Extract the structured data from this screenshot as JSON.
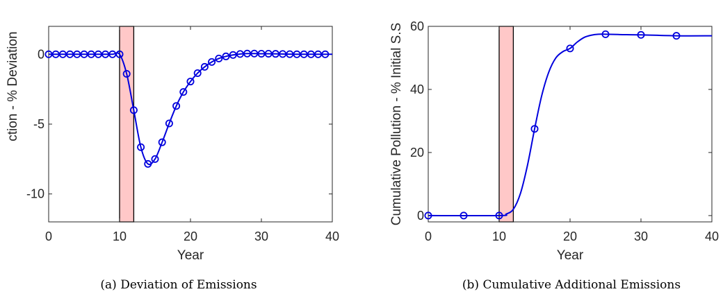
{
  "chart_data": [
    {
      "type": "line",
      "caption": "(a)  Deviation of Emissions",
      "xlabel": "Year",
      "ylabel": "Green Production - % Deviation",
      "xlim": [
        0,
        40
      ],
      "ylim": [
        -12,
        2
      ],
      "xticks": [
        0,
        10,
        20,
        30,
        40
      ],
      "yticks": [
        0,
        -5,
        -10
      ],
      "xtick_labels": [
        "0",
        "10",
        "20",
        "30",
        "40"
      ],
      "ytick_labels": [
        "0",
        "-5",
        "-10"
      ],
      "grid": false,
      "shaded_region": {
        "x_start": 10,
        "x_end": 12,
        "color": "#ffc8c8"
      },
      "series": [
        {
          "color": "#0000dd",
          "marker": "circle",
          "x": [
            0,
            1,
            2,
            3,
            4,
            5,
            6,
            7,
            8,
            9,
            10,
            11,
            12,
            13,
            14,
            15,
            16,
            17,
            18,
            19,
            20,
            21,
            22,
            23,
            24,
            25,
            26,
            27,
            28,
            29,
            30,
            31,
            32,
            33,
            34,
            35,
            36,
            37,
            38,
            39,
            40
          ],
          "y": [
            0,
            0,
            0,
            0,
            0,
            0,
            0,
            0,
            0,
            0,
            0,
            -1.4,
            -4.0,
            -6.65,
            -7.85,
            -7.5,
            -6.3,
            -4.95,
            -3.7,
            -2.7,
            -1.95,
            -1.35,
            -0.9,
            -0.55,
            -0.3,
            -0.15,
            -0.05,
            0.02,
            0.05,
            0.05,
            0.04,
            0.04,
            0.03,
            0.02,
            0.01,
            0,
            0,
            0,
            0,
            0,
            0
          ],
          "marker_x": [
            0,
            1,
            2,
            3,
            4,
            5,
            6,
            7,
            8,
            9,
            10,
            11,
            12,
            13,
            14,
            15,
            16,
            17,
            18,
            19,
            20,
            21,
            22,
            23,
            24,
            25,
            26,
            27,
            28,
            29,
            30,
            31,
            32,
            33,
            34,
            35,
            36,
            37,
            38,
            39
          ],
          "marker_y": [
            0,
            0,
            0,
            0,
            0,
            0,
            0,
            0,
            0,
            0,
            0,
            -1.4,
            -4.0,
            -6.65,
            -7.85,
            -7.5,
            -6.3,
            -4.95,
            -3.7,
            -2.7,
            -1.95,
            -1.35,
            -0.9,
            -0.55,
            -0.3,
            -0.15,
            -0.05,
            0.02,
            0.05,
            0.05,
            0.04,
            0.04,
            0.03,
            0.02,
            0.01,
            0,
            0,
            0,
            0,
            0
          ]
        }
      ]
    },
    {
      "type": "line",
      "caption": "(b)  Cumulative Additional Emissions",
      "xlabel": "Year",
      "ylabel": "Cumulative  Pollution - % Initial S.S",
      "xlim": [
        0,
        40
      ],
      "ylim": [
        -2,
        60
      ],
      "xticks": [
        0,
        10,
        20,
        30,
        40
      ],
      "yticks": [
        0,
        20,
        40,
        60
      ],
      "xtick_labels": [
        "0",
        "10",
        "20",
        "30",
        "40"
      ],
      "ytick_labels": [
        "0",
        "20",
        "40",
        "60"
      ],
      "grid": false,
      "shaded_region": {
        "x_start": 10,
        "x_end": 12,
        "color": "#ffc8c8"
      },
      "series": [
        {
          "color": "#0000dd",
          "marker": "circle",
          "x": [
            0,
            10,
            11,
            12,
            13,
            14,
            15,
            16,
            17,
            18,
            19,
            20,
            21,
            22,
            23,
            24,
            25,
            27,
            30,
            35,
            40
          ],
          "y": [
            0,
            0,
            0.5,
            2.0,
            7.0,
            16.0,
            27.5,
            38.0,
            45.5,
            50.0,
            52.0,
            53.0,
            55.0,
            56.5,
            57.2,
            57.5,
            57.5,
            57.4,
            57.3,
            57.0,
            57.0
          ],
          "marker_x": [
            0,
            5,
            10,
            15,
            20,
            25,
            30,
            35
          ],
          "marker_y": [
            0,
            0,
            0,
            27.5,
            53.0,
            57.5,
            57.3,
            57.0
          ]
        }
      ]
    }
  ]
}
